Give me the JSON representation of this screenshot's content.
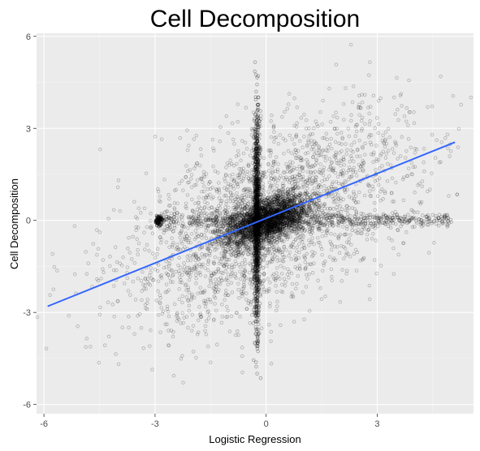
{
  "chart_data": {
    "type": "scatter",
    "title": "Cell Decomposition",
    "xlabel": "Logistic Regression",
    "ylabel": "Cell Decomposition",
    "xlim": [
      -6.2,
      5.6
    ],
    "ylim": [
      -6.3,
      6.1
    ],
    "xticks": [
      -6,
      -3,
      0,
      3
    ],
    "xtick_labels": [
      "-6",
      "-3",
      "0",
      "3"
    ],
    "yticks": [
      -6,
      -3,
      0,
      3,
      6
    ],
    "ytick_labels": [
      "-6",
      "-3",
      "0",
      "3",
      "6"
    ],
    "grid": true,
    "colors": {
      "panel": "#ebebeb",
      "grid_major": "#ffffff",
      "points": "#000000",
      "trend": "#3366ff"
    },
    "trend_line": {
      "x": [
        -5.9,
        5.1
      ],
      "y": [
        -2.8,
        2.55
      ]
    },
    "points": {
      "count_estimate": 6000,
      "description_visible": false
    }
  }
}
